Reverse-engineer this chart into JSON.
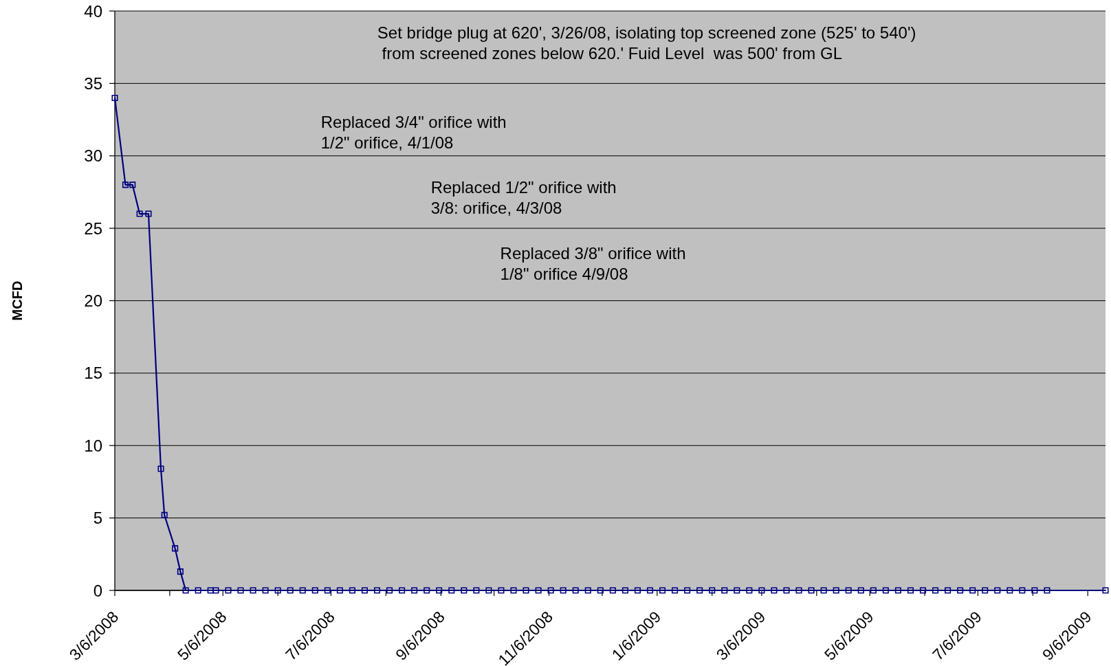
{
  "chart_data": {
    "type": "line",
    "ylabel": "MCFD",
    "color": "#000080",
    "marker": "square",
    "grid": "y",
    "xlim": [
      "2008-03-06",
      "2009-09-16"
    ],
    "ylim": [
      0,
      40
    ],
    "yticks": [
      0,
      5,
      10,
      15,
      20,
      25,
      30,
      35,
      40
    ],
    "xticks": [
      {
        "value": "2008-03-06",
        "label": "3/6/2008"
      },
      {
        "value": "2008-04-06",
        "label": null
      },
      {
        "value": "2008-05-06",
        "label": "5/6/2008"
      },
      {
        "value": "2008-06-06",
        "label": null
      },
      {
        "value": "2008-07-06",
        "label": "7/6/2008"
      },
      {
        "value": "2008-08-06",
        "label": null
      },
      {
        "value": "2008-09-06",
        "label": "9/6/2008"
      },
      {
        "value": "2008-10-06",
        "label": null
      },
      {
        "value": "2008-11-06",
        "label": "11/6/2008"
      },
      {
        "value": "2008-12-06",
        "label": null
      },
      {
        "value": "2009-01-06",
        "label": "1/6/2009"
      },
      {
        "value": "2009-02-06",
        "label": null
      },
      {
        "value": "2009-03-06",
        "label": "3/6/2009"
      },
      {
        "value": "2009-04-06",
        "label": null
      },
      {
        "value": "2009-05-06",
        "label": "5/6/2009"
      },
      {
        "value": "2009-06-06",
        "label": null
      },
      {
        "value": "2009-07-06",
        "label": "7/6/2009"
      },
      {
        "value": "2009-08-06",
        "label": null
      },
      {
        "value": "2009-09-06",
        "label": "9/6/2009"
      }
    ],
    "annotations": [
      "Set bridge plug at 620', 3/26/08, isolating top screened zone (525' to 540')\n from screened zones below 620.' Fuid Level  was 500' from GL",
      "Replaced 3/4\" orifice with\n1/2\" orifice, 4/1/08",
      "Replaced 1/2\" orifice with\n3/8: orifice, 4/3/08",
      "Replaced 3/8\" orifice with\n1/8\" orifice 4/9/08"
    ],
    "x": [
      "2008-03-06",
      "2008-03-12",
      "2008-03-16",
      "2008-03-20",
      "2008-03-25",
      "2008-04-01",
      "2008-04-03",
      "2008-04-09",
      "2008-04-12",
      "2008-04-15",
      "2008-04-22",
      "2008-04-29",
      "2008-05-02",
      "2008-05-09",
      "2008-05-16",
      "2008-05-23",
      "2008-05-30",
      "2008-06-06",
      "2008-06-13",
      "2008-06-20",
      "2008-06-27",
      "2008-07-04",
      "2008-07-11",
      "2008-07-18",
      "2008-07-25",
      "2008-08-01",
      "2008-08-08",
      "2008-08-15",
      "2008-08-22",
      "2008-08-29",
      "2008-09-05",
      "2008-09-12",
      "2008-09-19",
      "2008-09-26",
      "2008-10-03",
      "2008-10-10",
      "2008-10-17",
      "2008-10-24",
      "2008-10-31",
      "2008-11-07",
      "2008-11-14",
      "2008-11-21",
      "2008-11-28",
      "2008-12-05",
      "2008-12-12",
      "2008-12-19",
      "2008-12-26",
      "2009-01-02",
      "2009-01-09",
      "2009-01-16",
      "2009-01-23",
      "2009-01-30",
      "2009-02-06",
      "2009-02-13",
      "2009-02-20",
      "2009-02-27",
      "2009-03-06",
      "2009-03-13",
      "2009-03-20",
      "2009-03-27",
      "2009-04-03",
      "2009-04-10",
      "2009-04-17",
      "2009-04-24",
      "2009-05-01",
      "2009-05-08",
      "2009-05-15",
      "2009-05-22",
      "2009-05-29",
      "2009-06-05",
      "2009-06-12",
      "2009-06-19",
      "2009-06-26",
      "2009-07-03",
      "2009-07-10",
      "2009-07-17",
      "2009-07-24",
      "2009-07-31",
      "2009-08-07",
      "2009-08-14",
      "2009-09-16"
    ],
    "values": [
      34,
      28,
      28,
      26,
      26,
      8.4,
      5.2,
      2.9,
      1.3,
      0,
      0,
      0,
      0,
      0,
      0,
      0,
      0,
      0,
      0,
      0,
      0,
      0,
      0,
      0,
      0,
      0,
      0,
      0,
      0,
      0,
      0,
      0,
      0,
      0,
      0,
      0,
      0,
      0,
      0,
      0,
      0,
      0,
      0,
      0,
      0,
      0,
      0,
      0,
      0,
      0,
      0,
      0,
      0,
      0,
      0,
      0,
      0,
      0,
      0,
      0,
      0,
      0,
      0,
      0,
      0,
      0,
      0,
      0,
      0,
      0,
      0,
      0,
      0,
      0,
      0,
      0,
      0,
      0,
      0,
      0,
      0
    ]
  }
}
